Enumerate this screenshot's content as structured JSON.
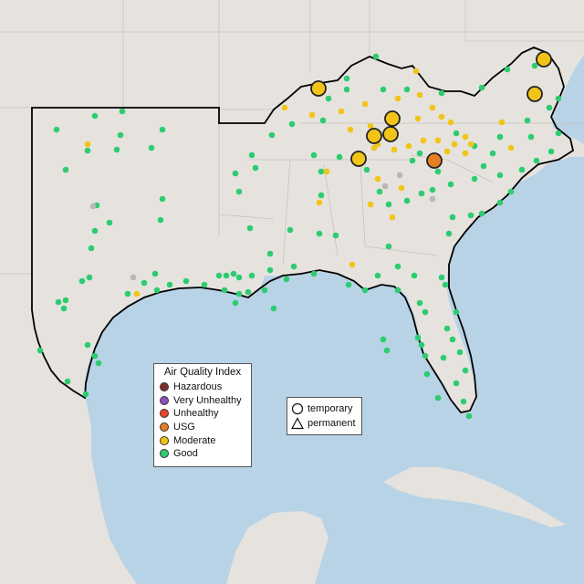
{
  "legend": {
    "title": "Air Quality Index",
    "categories": [
      {
        "label": "Hazardous",
        "color": "#7e2d2d"
      },
      {
        "label": "Very Unhealthy",
        "color": "#8e4fbf"
      },
      {
        "label": "Unhealthy",
        "color": "#e8452c"
      },
      {
        "label": "USG",
        "color": "#e67e22"
      },
      {
        "label": "Moderate",
        "color": "#f2c418"
      },
      {
        "label": "Good",
        "color": "#2ecc71"
      }
    ]
  },
  "shape_legend": {
    "temporary": {
      "label": "temporary",
      "icon": "circle-icon"
    },
    "permanent": {
      "label": "permanent",
      "icon": "triangle-icon"
    }
  },
  "map_colors": {
    "water": "#b9d3e6",
    "land": "#e6e3df",
    "region_outline": "#000000",
    "no_data": "#b8b8b8"
  }
}
